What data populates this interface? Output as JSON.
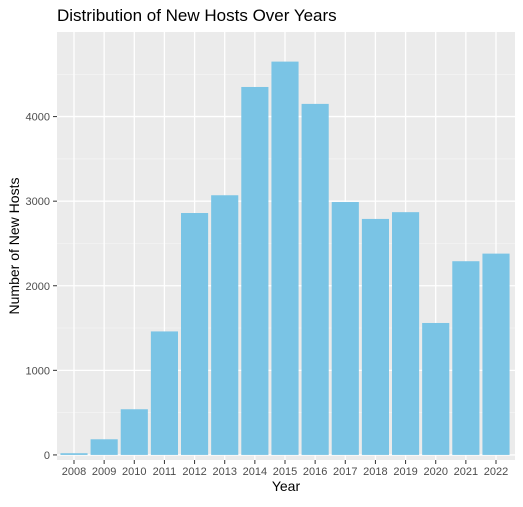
{
  "chart_data": {
    "type": "bar",
    "title": "Distribution of New Hosts Over Years",
    "xlabel": "Year",
    "ylabel": "Number of New Hosts",
    "categories": [
      "2008",
      "2009",
      "2010",
      "2011",
      "2012",
      "2013",
      "2014",
      "2015",
      "2016",
      "2017",
      "2018",
      "2019",
      "2020",
      "2021",
      "2022"
    ],
    "values": [
      20,
      185,
      540,
      1460,
      2860,
      3070,
      4350,
      4650,
      4150,
      2990,
      2790,
      2870,
      1560,
      2290,
      2380
    ],
    "ylim": [
      -60,
      5000
    ],
    "yticks": [
      0,
      1000,
      2000,
      3000,
      4000
    ],
    "ytick_labels": [
      "0",
      "1000",
      "2000",
      "3000",
      "4000"
    ],
    "grid": true,
    "colors": {
      "bar": "#7ac4e5",
      "panel_background": "#ebebeb",
      "grid_major": "#ffffff",
      "text": "#1a1a1a",
      "tick_text": "#4d4d4d"
    }
  }
}
